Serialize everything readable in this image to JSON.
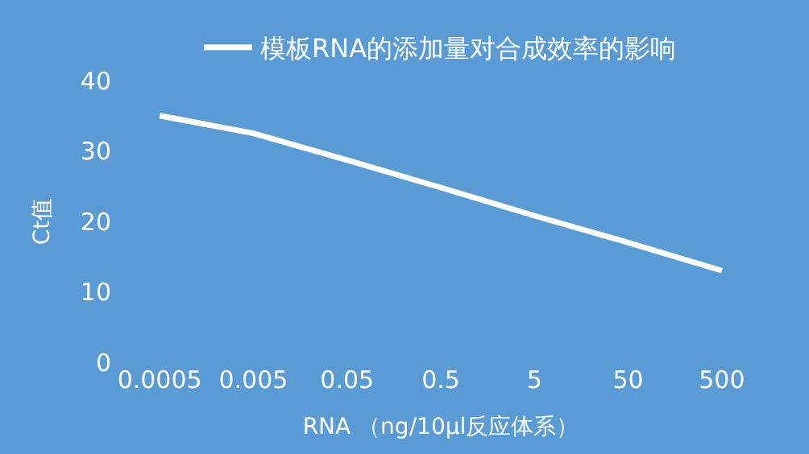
{
  "chart_data": {
    "type": "line",
    "categories": [
      "0.0005",
      "0.005",
      "0.05",
      "0.5",
      "5",
      "50",
      "500"
    ],
    "series": [
      {
        "name": "模板RNA的添加量对合成效率的影响",
        "color": "#ffffff",
        "values": [
          35,
          32.5,
          28.7,
          24.8,
          20.8,
          17,
          13
        ]
      }
    ],
    "ylabel": "Ct值",
    "xlabel": "RNA （ng/10μl反应体系）",
    "ylim": [
      0,
      40
    ],
    "yticks": [
      0,
      10,
      20,
      30,
      40
    ],
    "grid": false,
    "legend": "top",
    "marker": "none",
    "line_style": "solid"
  }
}
